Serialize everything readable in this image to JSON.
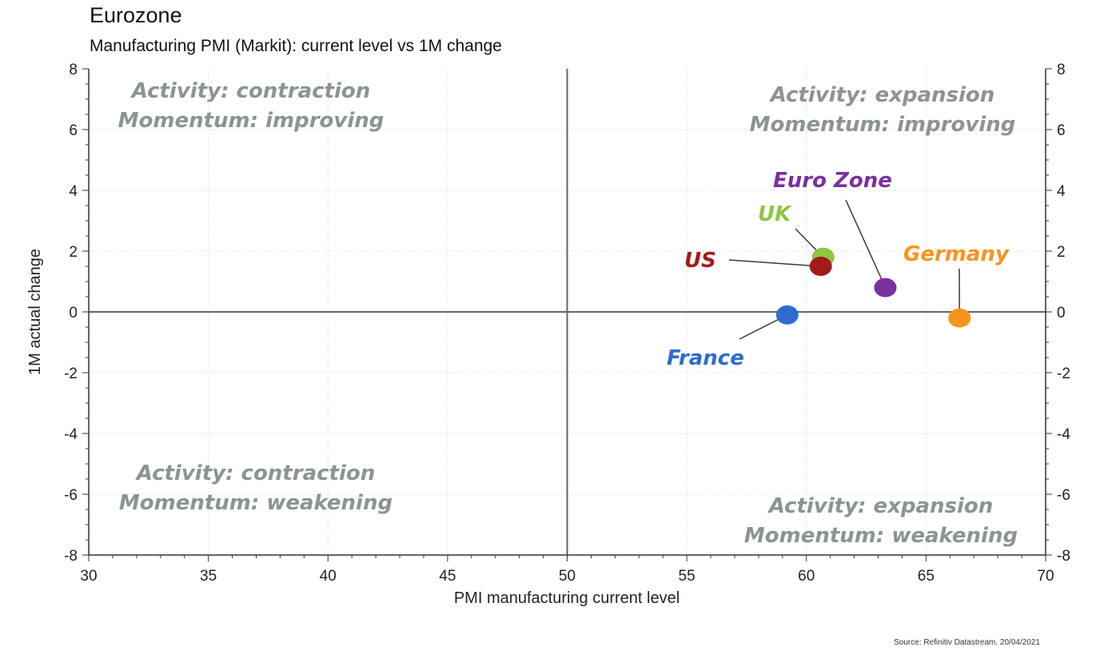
{
  "header": {
    "title": "Eurozone",
    "subtitle": "Manufacturing PMI (Markit): current level vs 1M change"
  },
  "source": "Source: Refinitiv Datastream, 20/04/2021",
  "chart_data": {
    "type": "scatter",
    "xlabel": "PMI manufacturing current level",
    "ylabel": "1M actual change",
    "xlim": [
      30,
      70
    ],
    "ylim": [
      -8,
      8
    ],
    "x_ticks": [
      30,
      35,
      40,
      45,
      50,
      55,
      60,
      65,
      70
    ],
    "y_ticks": [
      -8,
      -6,
      -4,
      -2,
      0,
      2,
      4,
      6,
      8
    ],
    "grid": true,
    "reference_lines": {
      "x": 50,
      "y": 0
    },
    "quadrant_labels": [
      {
        "id": "top-left",
        "lines": [
          "Activity: contraction",
          "Momentum: improving"
        ]
      },
      {
        "id": "top-right",
        "lines": [
          "Activity: expansion",
          "Momentum: improving"
        ]
      },
      {
        "id": "bottom-left",
        "lines": [
          "Activity: contraction",
          "Momentum: weakening"
        ]
      },
      {
        "id": "bottom-right",
        "lines": [
          "Activity: expansion",
          "Momentum: weakening"
        ]
      }
    ],
    "points": [
      {
        "label": "UK",
        "x": 60.7,
        "y": 1.8,
        "color": "#8dc63f"
      },
      {
        "label": "US",
        "x": 60.6,
        "y": 1.5,
        "color": "#a31a1a"
      },
      {
        "label": "Euro Zone",
        "x": 63.3,
        "y": 0.8,
        "color": "#7b2fa0"
      },
      {
        "label": "Germany",
        "x": 66.4,
        "y": -0.2,
        "color": "#f7941d"
      },
      {
        "label": "France",
        "x": 59.2,
        "y": -0.1,
        "color": "#2e6bd1"
      }
    ]
  }
}
